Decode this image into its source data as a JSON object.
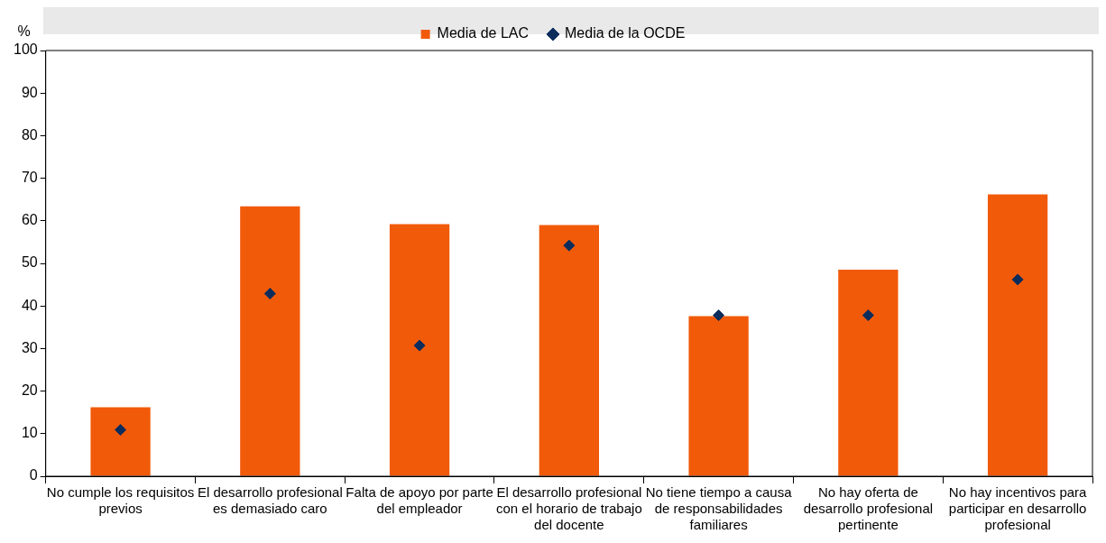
{
  "chart_data": {
    "type": "bar",
    "ylabel": "%",
    "categories": [
      "No cumple los requisitos previos",
      "El desarrollo profesional es demasiado caro",
      "Falta de apoyo por parte del empleador",
      "El desarrollo profesional con el horario de trabajo del docente",
      "No tiene tiempo a causa de responsabilidades familiares",
      "No hay oferta de desarrollo profesional pertinente",
      "No hay incentivos para participar en desarrollo profesional"
    ],
    "series": [
      {
        "name": "Media de LAC",
        "color": "#f15a09",
        "values": [
          16.2,
          63.4,
          59.2,
          59.0,
          37.6,
          48.5,
          66.2
        ]
      },
      {
        "name": "Media de la OCDE",
        "type": "scatter",
        "color": "#0c2d5c",
        "values": [
          10.9,
          42.9,
          30.7,
          54.2,
          37.8,
          37.8,
          46.2
        ]
      }
    ],
    "ylim": [
      0,
      100
    ],
    "yticks": [
      0,
      10,
      20,
      30,
      40,
      50,
      60,
      70,
      80,
      90,
      100
    ],
    "grid": false,
    "legend": "top",
    "marker": "diamond"
  }
}
